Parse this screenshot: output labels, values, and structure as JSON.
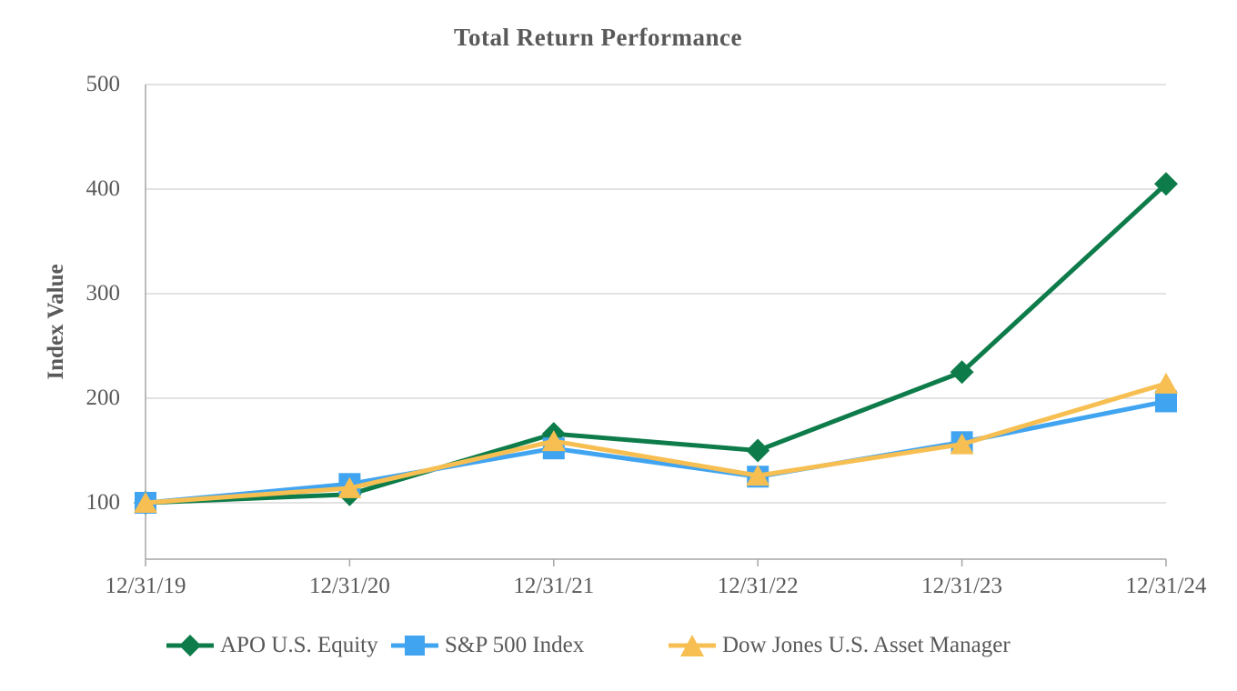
{
  "title": "Total Return Performance",
  "y_axis_label": "Index Value",
  "colors": {
    "apo_green": "#0E7C4A",
    "sp500_blue": "#41A4F0",
    "dow_jones_yellow": "#F7BF52",
    "gridline": "#D9D9D9",
    "axis": "#A6A6A6",
    "text": "#595959"
  },
  "chart_data": {
    "type": "line",
    "title": "Total Return Performance",
    "xlabel": "",
    "ylabel": "Index Value",
    "categories": [
      "12/31/19",
      "12/31/20",
      "12/31/21",
      "12/31/22",
      "12/31/23",
      "12/31/24"
    ],
    "series": [
      {
        "name": "APO U.S. Equity",
        "marker": "diamond",
        "color": "#0E7C4A",
        "values": [
          100,
          108,
          166,
          150,
          225,
          405
        ]
      },
      {
        "name": "S&P 500 Index",
        "marker": "square",
        "color": "#41A4F0",
        "values": [
          100,
          118,
          152,
          125,
          158,
          197
        ]
      },
      {
        "name": "Dow Jones U.S. Asset Manager",
        "marker": "triangle",
        "color": "#F7BF52",
        "values": [
          100,
          114,
          159,
          126,
          156,
          214
        ]
      }
    ],
    "y_ticks": [
      100,
      200,
      300,
      400,
      500
    ],
    "ylim": [
      46,
      500
    ],
    "grid": true,
    "legend_position": "bottom"
  }
}
